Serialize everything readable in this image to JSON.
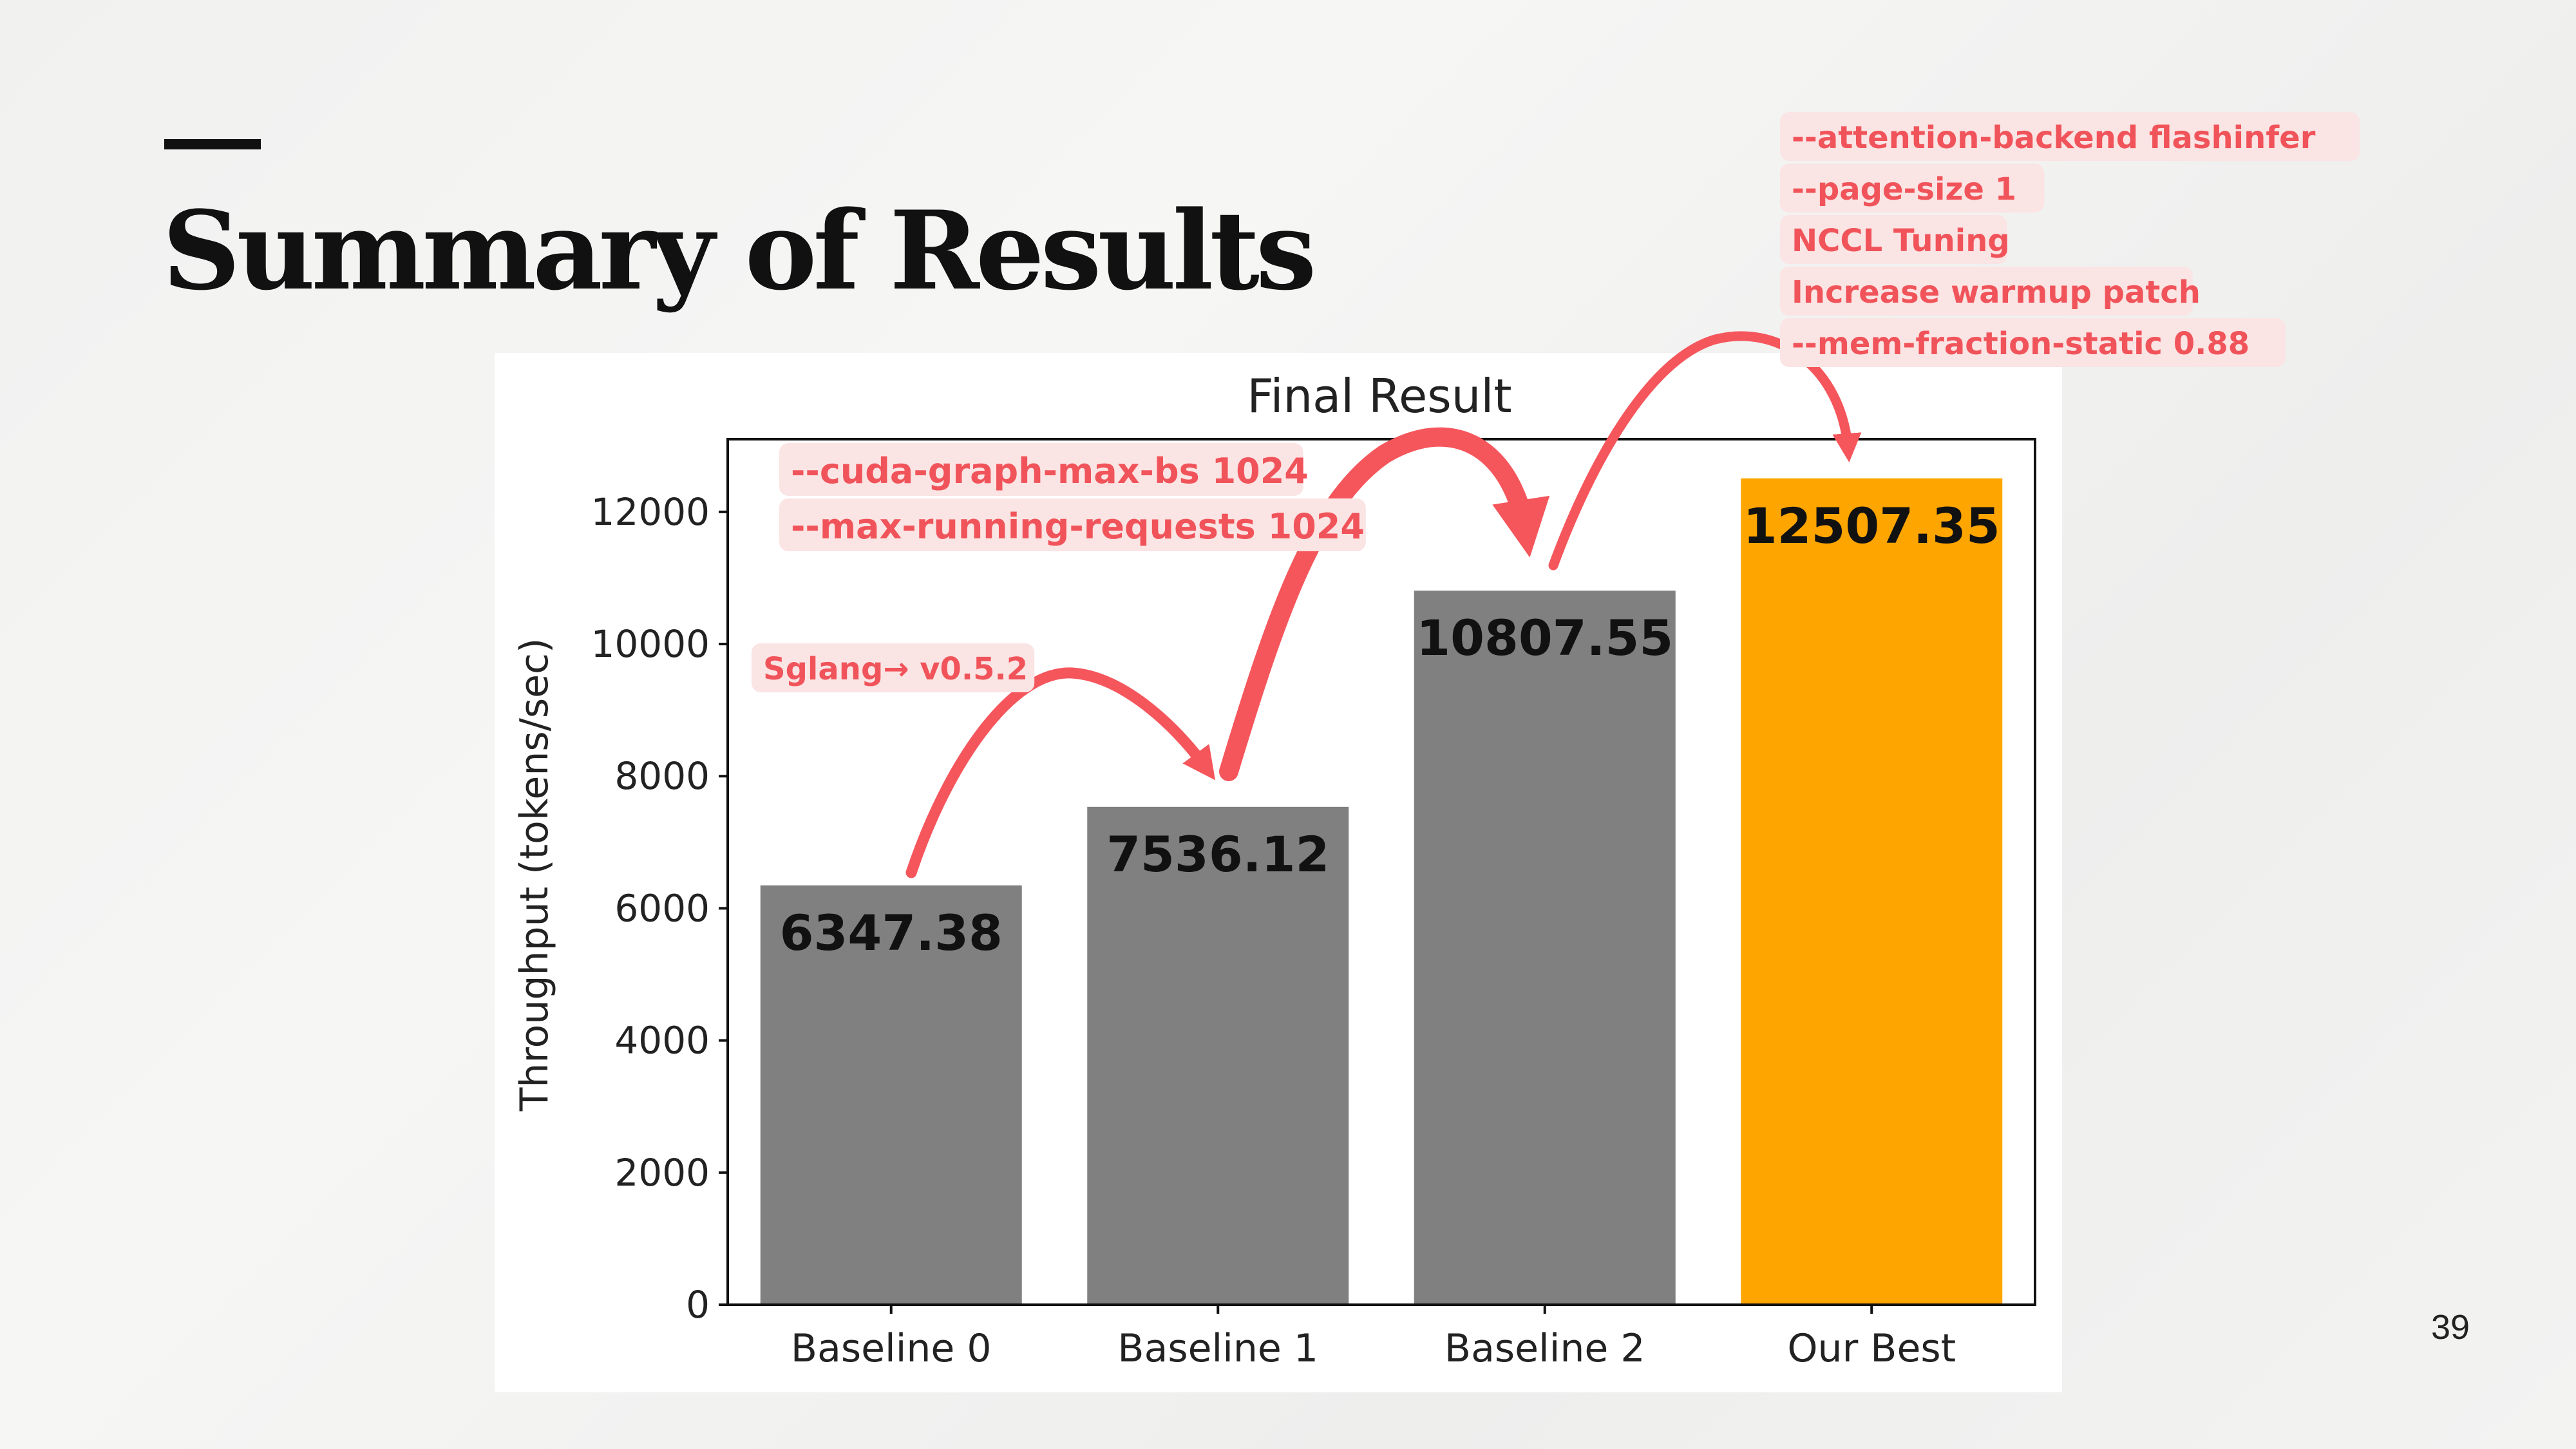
{
  "slide": {
    "title": "Summary of Results",
    "page_number": "39"
  },
  "colors": {
    "bar_default": "#808080",
    "bar_highlight": "#ffa500",
    "annotation_text": "#f0545a",
    "annotation_bg": "#fbe4e4",
    "arrow": "#f5565c"
  },
  "annotations": {
    "step1": [
      "Sglang→ v0.5.2"
    ],
    "step2": [
      "--cuda-graph-max-bs 1024",
      "--max-running-requests 1024"
    ],
    "step3": [
      "--attention-backend flashinfer",
      "--page-size 1",
      "NCCL Tuning",
      "Increase warmup patch",
      "--mem-fraction-static 0.88"
    ]
  },
  "chart_data": {
    "type": "bar",
    "title": "Final Result",
    "xlabel": "",
    "ylabel": "Throughput (tokens/sec)",
    "categories": [
      "Baseline 0",
      "Baseline 1",
      "Baseline 2",
      "Our Best"
    ],
    "values": [
      6347.38,
      7536.12,
      10807.55,
      12507.35
    ],
    "value_labels": [
      "6347.38",
      "7536.12",
      "10807.55",
      "12507.35"
    ],
    "bar_colors": [
      "#808080",
      "#808080",
      "#808080",
      "#ffa500"
    ],
    "ylim": [
      0,
      13100
    ],
    "yticks": [
      0,
      2000,
      4000,
      6000,
      8000,
      10000,
      12000
    ],
    "ytick_labels": [
      "0",
      "2000",
      "4000",
      "6000",
      "8000",
      "10000",
      "12000"
    ],
    "grid": false,
    "legend": "none"
  }
}
